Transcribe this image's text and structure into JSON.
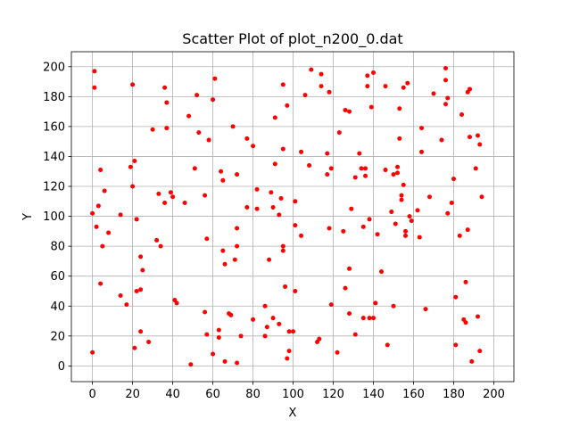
{
  "chart_data": {
    "type": "scatter",
    "title": "Scatter Plot of plot_n200_0.dat",
    "xlabel": "X",
    "ylabel": "Y",
    "xlim": [
      -10.5,
      210
    ],
    "ylim": [
      -10.5,
      210
    ],
    "xticks": [
      0,
      20,
      40,
      60,
      80,
      100,
      120,
      140,
      160,
      180,
      200
    ],
    "yticks": [
      0,
      20,
      40,
      60,
      80,
      100,
      120,
      140,
      160,
      180,
      200
    ],
    "grid": true,
    "marker_color": "#ff0000",
    "series": [
      {
        "points": [
          [
            1,
            197
          ],
          [
            1,
            186
          ],
          [
            0,
            102
          ],
          [
            0,
            9
          ],
          [
            2,
            93
          ],
          [
            4,
            131
          ],
          [
            3,
            107
          ],
          [
            6,
            117
          ],
          [
            4,
            55
          ],
          [
            5,
            80
          ],
          [
            8,
            89
          ],
          [
            14,
            101
          ],
          [
            14,
            47
          ],
          [
            17,
            41
          ],
          [
            19,
            133
          ],
          [
            20,
            188
          ],
          [
            20,
            120
          ],
          [
            21,
            137
          ],
          [
            21,
            12
          ],
          [
            22,
            98
          ],
          [
            22,
            50
          ],
          [
            24,
            51
          ],
          [
            24,
            73
          ],
          [
            25,
            64
          ],
          [
            24,
            23
          ],
          [
            28,
            16
          ],
          [
            30,
            158
          ],
          [
            32,
            84
          ],
          [
            33,
            115
          ],
          [
            34,
            80
          ],
          [
            36,
            186
          ],
          [
            37,
            176
          ],
          [
            37,
            159
          ],
          [
            36,
            109
          ],
          [
            39,
            116
          ],
          [
            40,
            113
          ],
          [
            41,
            44
          ],
          [
            42,
            42
          ],
          [
            46,
            109
          ],
          [
            48,
            167
          ],
          [
            49,
            1
          ],
          [
            51,
            132
          ],
          [
            52,
            181
          ],
          [
            53,
            156
          ],
          [
            56,
            114
          ],
          [
            56,
            36
          ],
          [
            57,
            85
          ],
          [
            57,
            21
          ],
          [
            58,
            151
          ],
          [
            60,
            178
          ],
          [
            61,
            192
          ],
          [
            60,
            8
          ],
          [
            63,
            19
          ],
          [
            63,
            24
          ],
          [
            64,
            130
          ],
          [
            65,
            124
          ],
          [
            65,
            77
          ],
          [
            66,
            68
          ],
          [
            66,
            3
          ],
          [
            68,
            35
          ],
          [
            69,
            34
          ],
          [
            70,
            160
          ],
          [
            71,
            71
          ],
          [
            72,
            128
          ],
          [
            72,
            92
          ],
          [
            72,
            80
          ],
          [
            72,
            2
          ],
          [
            74,
            20
          ],
          [
            77,
            152
          ],
          [
            77,
            106
          ],
          [
            80,
            147
          ],
          [
            80,
            31
          ],
          [
            82,
            118
          ],
          [
            82,
            105
          ],
          [
            86,
            20
          ],
          [
            86,
            40
          ],
          [
            87,
            26
          ],
          [
            88,
            71
          ],
          [
            89,
            116
          ],
          [
            90,
            106
          ],
          [
            90,
            32
          ],
          [
            91,
            166
          ],
          [
            91,
            135
          ],
          [
            93,
            101
          ],
          [
            93,
            28
          ],
          [
            94,
            112
          ],
          [
            95,
            145
          ],
          [
            95,
            188
          ],
          [
            95,
            80
          ],
          [
            95,
            77
          ],
          [
            96,
            53
          ],
          [
            97,
            174
          ],
          [
            97,
            5
          ],
          [
            98,
            23
          ],
          [
            98,
            10
          ],
          [
            100,
            23
          ],
          [
            101,
            110
          ],
          [
            101,
            94
          ],
          [
            101,
            50
          ],
          [
            104,
            143
          ],
          [
            104,
            87
          ],
          [
            106,
            181
          ],
          [
            108,
            134
          ],
          [
            109,
            198
          ],
          [
            112,
            16
          ],
          [
            113,
            18
          ],
          [
            114,
            195
          ],
          [
            114,
            187
          ],
          [
            117,
            128
          ],
          [
            117,
            142
          ],
          [
            118,
            183
          ],
          [
            118,
            92
          ],
          [
            119,
            132
          ],
          [
            119,
            41
          ],
          [
            122,
            9
          ],
          [
            123,
            156
          ],
          [
            125,
            90
          ],
          [
            126,
            171
          ],
          [
            126,
            52
          ],
          [
            128,
            170
          ],
          [
            128,
            65
          ],
          [
            129,
            105
          ],
          [
            128,
            35
          ],
          [
            131,
            126
          ],
          [
            131,
            21
          ],
          [
            133,
            142
          ],
          [
            134,
            132
          ],
          [
            135,
            93
          ],
          [
            135,
            32
          ],
          [
            136,
            132
          ],
          [
            136,
            127
          ],
          [
            137,
            194
          ],
          [
            137,
            187
          ],
          [
            138,
            98
          ],
          [
            138,
            32
          ],
          [
            139,
            173
          ],
          [
            140,
            196
          ],
          [
            140,
            32
          ],
          [
            141,
            42
          ],
          [
            142,
            88
          ],
          [
            144,
            63
          ],
          [
            146,
            187
          ],
          [
            146,
            131
          ],
          [
            147,
            14
          ],
          [
            149,
            103
          ],
          [
            150,
            128
          ],
          [
            150,
            40
          ],
          [
            151,
            95
          ],
          [
            152,
            133
          ],
          [
            152,
            129
          ],
          [
            153,
            152
          ],
          [
            153,
            172
          ],
          [
            154,
            114
          ],
          [
            154,
            111
          ],
          [
            155,
            186
          ],
          [
            155,
            121
          ],
          [
            156,
            90
          ],
          [
            156,
            87
          ],
          [
            157,
            189
          ],
          [
            158,
            100
          ],
          [
            159,
            97
          ],
          [
            162,
            104
          ],
          [
            163,
            86
          ],
          [
            164,
            143
          ],
          [
            164,
            159
          ],
          [
            166,
            38
          ],
          [
            168,
            113
          ],
          [
            170,
            182
          ],
          [
            174,
            151
          ],
          [
            176,
            199
          ],
          [
            176,
            191
          ],
          [
            176,
            175
          ],
          [
            177,
            179
          ],
          [
            177,
            102
          ],
          [
            179,
            109
          ],
          [
            180,
            125
          ],
          [
            181,
            46
          ],
          [
            181,
            14
          ],
          [
            183,
            87
          ],
          [
            184,
            168
          ],
          [
            185,
            31
          ],
          [
            186,
            29
          ],
          [
            186,
            56
          ],
          [
            187,
            183
          ],
          [
            187,
            91
          ],
          [
            188,
            185
          ],
          [
            188,
            153
          ],
          [
            189,
            3
          ],
          [
            191,
            132
          ],
          [
            192,
            154
          ],
          [
            192,
            33
          ],
          [
            193,
            148
          ],
          [
            193,
            10
          ],
          [
            194,
            113
          ]
        ]
      }
    ]
  }
}
